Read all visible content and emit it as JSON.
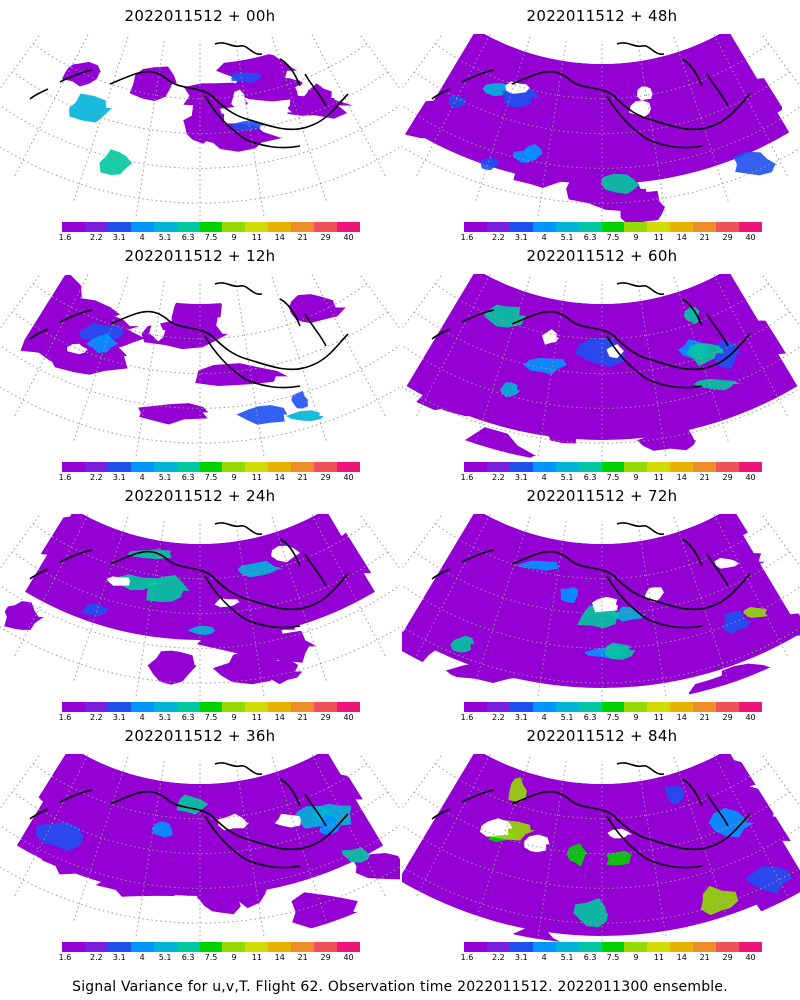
{
  "panels": [
    {
      "title": "2022011512 + 00h",
      "coverage": 0.35
    },
    {
      "title": "2022011512 + 48h",
      "coverage": 0.75
    },
    {
      "title": "2022011512 + 12h",
      "coverage": 0.45
    },
    {
      "title": "2022011512 + 60h",
      "coverage": 0.85
    },
    {
      "title": "2022011512 + 24h",
      "coverage": 0.6
    },
    {
      "title": "2022011512 + 72h",
      "coverage": 0.9
    },
    {
      "title": "2022011512 + 36h",
      "coverage": 0.7
    },
    {
      "title": "2022011512 + 84h",
      "coverage": 0.95
    }
  ],
  "colorbar": {
    "labels": [
      "1.6",
      "2.2",
      "3.1",
      "4",
      "5.1",
      "6.3",
      "7.5",
      "9",
      "11",
      "14",
      "21",
      "29",
      "40"
    ],
    "colors": [
      "#9400d3",
      "#7a1fe0",
      "#1e50f0",
      "#0096ff",
      "#00b4d8",
      "#00c8a0",
      "#00d200",
      "#96dc00",
      "#d2dc00",
      "#e6b400",
      "#f08c28",
      "#f0505a",
      "#f01478"
    ]
  },
  "caption": "Signal Variance for u,v,T. Flight 62. Observation time 2022011512. 2022011300 ensemble."
}
